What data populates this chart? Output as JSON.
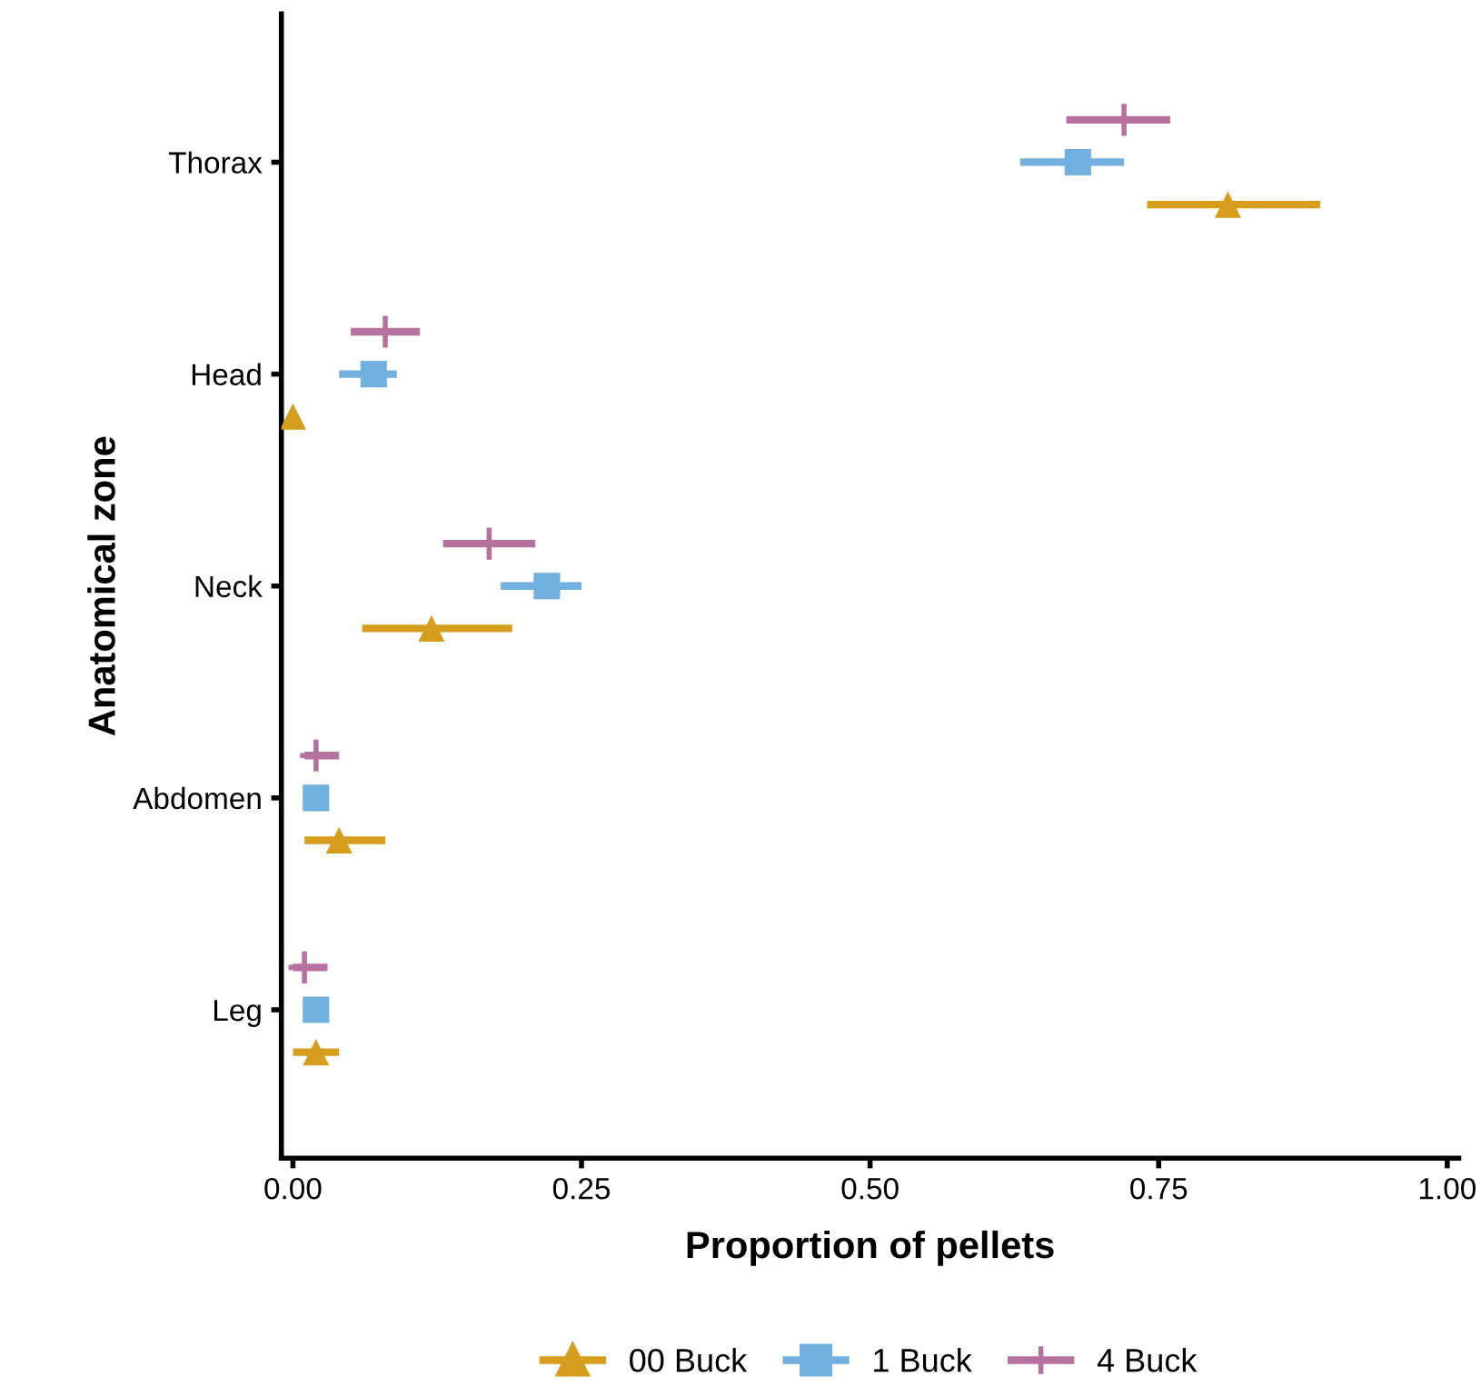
{
  "chart_data": {
    "type": "scatter",
    "orientation": "horizontal",
    "xlabel": "Proportion of pellets",
    "ylabel": "Anatomical zone",
    "categories": [
      "Thorax",
      "Head",
      "Neck",
      "Abdomen",
      "Leg"
    ],
    "xlim": [
      -0.01,
      1.01
    ],
    "xticks": [
      {
        "value": 0,
        "label": "0.00"
      },
      0.25,
      {
        "value": 0.5,
        "label": "0.50"
      },
      0.75,
      {
        "value": 1,
        "label": "1.00"
      }
    ],
    "grid": false,
    "legend": "bottom",
    "series": [
      {
        "name": "00 Buck",
        "color": "#d69e1c",
        "marker": "triangle",
        "values": [
          0.81,
          0.0,
          0.12,
          0.04,
          0.02
        ],
        "errors": [
          [
            0.74,
            0.89
          ],
          null,
          [
            0.06,
            0.19
          ],
          [
            0.01,
            0.08
          ],
          [
            0.0,
            0.04
          ]
        ]
      },
      {
        "name": "1 Buck",
        "color": "#72b0e0",
        "marker": "square",
        "values": [
          0.68,
          0.07,
          0.22,
          0.02,
          0.02
        ],
        "errors": [
          [
            0.63,
            0.72
          ],
          [
            0.04,
            0.09
          ],
          [
            0.18,
            0.25
          ],
          [
            0.01,
            0.03
          ],
          [
            0.01,
            0.03
          ]
        ]
      },
      {
        "name": "4 Buck",
        "color": "#b7719f",
        "marker": "cross",
        "values": [
          0.72,
          0.08,
          0.17,
          0.02,
          0.01
        ],
        "errors": [
          [
            0.67,
            0.76
          ],
          [
            0.05,
            0.11
          ],
          [
            0.13,
            0.21
          ],
          [
            0.01,
            0.04
          ],
          [
            0.0,
            0.03
          ]
        ]
      }
    ]
  }
}
